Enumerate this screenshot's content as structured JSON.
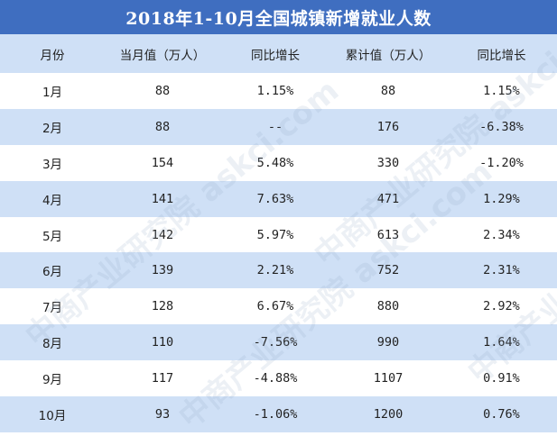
{
  "title": "2018年1-10月全国城镇新增就业人数",
  "headers": [
    "月份",
    "当月值（万人）",
    "同比增长",
    "累计值（万人）",
    "同比增长"
  ],
  "rows": [
    [
      "1月",
      "88",
      "1.15%",
      "88",
      "1.15%"
    ],
    [
      "2月",
      "88",
      "--",
      "176",
      "-6.38%"
    ],
    [
      "3月",
      "154",
      "5.48%",
      "330",
      "-1.20%"
    ],
    [
      "4月",
      "141",
      "7.63%",
      "471",
      "1.29%"
    ],
    [
      "5月",
      "142",
      "5.97%",
      "613",
      "2.34%"
    ],
    [
      "6月",
      "139",
      "2.21%",
      "752",
      "2.31%"
    ],
    [
      "7月",
      "128",
      "6.67%",
      "880",
      "2.92%"
    ],
    [
      "8月",
      "110",
      "-7.56%",
      "990",
      "1.64%"
    ],
    [
      "9月",
      "117",
      "-4.88%",
      "1107",
      "0.91%"
    ],
    [
      "10月",
      "93",
      "-1.06%",
      "1200",
      "0.76%"
    ]
  ],
  "watermark": "中商产业研究院 askci.com",
  "colors": {
    "title_bg": "#3f6ec0",
    "stripe": "#cfe0f6",
    "text": "#222222"
  }
}
